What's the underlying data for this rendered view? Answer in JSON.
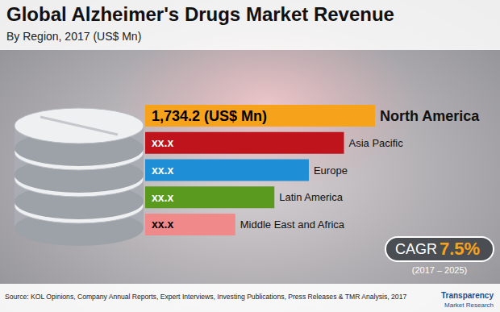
{
  "chart_data": {
    "type": "bar",
    "orientation": "horizontal",
    "title": "Global Alzheimer's Drugs Market Revenue",
    "subtitle": "By Region, 2017 (US$ Mn)",
    "categories": [
      "North America",
      "Asia Pacific",
      "Europe",
      "Latin America",
      "Middle East and Africa"
    ],
    "values": [
      1734.2,
      1500,
      1235,
      975,
      680
    ],
    "value_labels": [
      "1,734.2 (US$ Mn)",
      "xx.x",
      "xx.x",
      "xx.x",
      "xx.x"
    ],
    "colors": [
      "#f7a21b",
      "#c0141c",
      "#1e8fd6",
      "#5a9a1e",
      "#f08a8a"
    ],
    "xlim": [
      0,
      1734.2
    ],
    "data_labels": true,
    "tick_labels": false,
    "grid": false,
    "annotations": [
      "CAGR",
      "7.5%",
      "(2017 – 2025)",
      "Transparency",
      "Market Research"
    ],
    "source": "Source: KOL Opinions, Company Annual Reports, Expert Interviews, Investing Publications, Press Releases & TMR Analysis, 2017"
  }
}
